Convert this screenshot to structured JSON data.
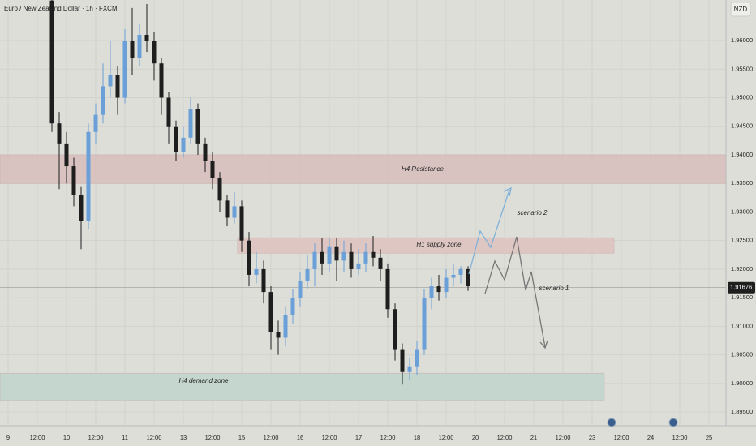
{
  "chart_data": {
    "type": "candlestick",
    "title": "Euro / New Zealand Dollar · 1h · FXCM",
    "currency": "NZD",
    "bull_color": "#6a9fd8",
    "bear_color": "#1e1e1e",
    "grid": true,
    "xlim": [
      -3.33,
      295
    ],
    "ylim": [
      1.8926,
      1.9671
    ],
    "xticks": [
      {
        "value": 0,
        "label": "9"
      },
      {
        "value": 12,
        "label": "12:00"
      },
      {
        "value": 24,
        "label": "10"
      },
      {
        "value": 36,
        "label": "12:00"
      },
      {
        "value": 48,
        "label": "11"
      },
      {
        "value": 60,
        "label": "12:00"
      },
      {
        "value": 72,
        "label": "13"
      },
      {
        "value": 84,
        "label": "12:00"
      },
      {
        "value": 96,
        "label": "15"
      },
      {
        "value": 108,
        "label": "12:00"
      },
      {
        "value": 120,
        "label": "16"
      },
      {
        "value": 132,
        "label": "12:00"
      },
      {
        "value": 144,
        "label": "17"
      },
      {
        "value": 156,
        "label": "12:00"
      },
      {
        "value": 168,
        "label": "18"
      },
      {
        "value": 180,
        "label": "12:00"
      },
      {
        "value": 192,
        "label": "20"
      },
      {
        "value": 204,
        "label": "12:00"
      },
      {
        "value": 216,
        "label": "21"
      },
      {
        "value": 228,
        "label": "12:00"
      },
      {
        "value": 240,
        "label": "23"
      },
      {
        "value": 252,
        "label": "12:00"
      },
      {
        "value": 264,
        "label": "24"
      },
      {
        "value": 276,
        "label": "12:00"
      },
      {
        "value": 288,
        "label": "25"
      }
    ],
    "yticks": [
      {
        "value": 1.96,
        "label": "1.96000"
      },
      {
        "value": 1.955,
        "label": "1.95500"
      },
      {
        "value": 1.95,
        "label": "1.95000"
      },
      {
        "value": 1.945,
        "label": "1.94500"
      },
      {
        "value": 1.94,
        "label": "1.94000"
      },
      {
        "value": 1.935,
        "label": "1.93500"
      },
      {
        "value": 1.93,
        "label": "1.93000"
      },
      {
        "value": 1.925,
        "label": "1.92500"
      },
      {
        "value": 1.92,
        "label": "1.92000"
      },
      {
        "value": 1.915,
        "label": "1.91500"
      },
      {
        "value": 1.91,
        "label": "1.91000"
      },
      {
        "value": 1.905,
        "label": "1.90500"
      },
      {
        "value": 1.9,
        "label": "1.90000"
      },
      {
        "value": 1.895,
        "label": "1.89500"
      }
    ],
    "last_price": {
      "value": 1.91676,
      "label": "1.91676"
    },
    "x": [
      18,
      21,
      24,
      27,
      30,
      33,
      36,
      39,
      42,
      45,
      48,
      51,
      54,
      57,
      60,
      63,
      66,
      69,
      72,
      75,
      78,
      81,
      84,
      87,
      90,
      93,
      96,
      99,
      102,
      105,
      108,
      111,
      114,
      117,
      120,
      123,
      126,
      129,
      132,
      135,
      138,
      141,
      144,
      147,
      150,
      153,
      156,
      159,
      162,
      165,
      168,
      171,
      174,
      177,
      180,
      183,
      186,
      189
    ],
    "open": [
      1.967,
      1.9455,
      1.942,
      1.938,
      1.933,
      1.9285,
      1.944,
      1.947,
      1.952,
      1.954,
      1.95,
      1.96,
      1.957,
      1.961,
      1.96,
      1.956,
      1.95,
      1.945,
      1.9405,
      1.943,
      1.948,
      1.942,
      1.939,
      1.936,
      1.932,
      1.929,
      1.931,
      1.925,
      1.919,
      1.92,
      1.916,
      1.909,
      1.908,
      1.912,
      1.915,
      1.918,
      1.92,
      1.923,
      1.921,
      1.924,
      1.9215,
      1.923,
      1.92,
      1.921,
      1.923,
      1.922,
      1.92,
      1.913,
      1.906,
      1.902,
      1.903,
      1.906,
      1.915,
      1.917,
      1.916,
      1.9185,
      1.919,
      1.92
    ],
    "high": [
      1.9671,
      1.9475,
      1.944,
      1.9395,
      1.9345,
      1.9455,
      1.949,
      1.956,
      1.96,
      1.9555,
      1.962,
      1.9657,
      1.963,
      1.9664,
      1.9615,
      1.957,
      1.951,
      1.946,
      1.945,
      1.95,
      1.949,
      1.943,
      1.9405,
      1.937,
      1.933,
      1.9335,
      1.932,
      1.9265,
      1.923,
      1.9215,
      1.917,
      1.911,
      1.9135,
      1.9165,
      1.9195,
      1.9225,
      1.9245,
      1.9255,
      1.9255,
      1.9255,
      1.925,
      1.9245,
      1.9235,
      1.9245,
      1.9258,
      1.9235,
      1.921,
      1.914,
      1.907,
      1.9045,
      1.9075,
      1.9165,
      1.9185,
      1.919,
      1.92,
      1.921,
      1.9205,
      1.9205
    ],
    "low": [
      1.944,
      1.934,
      1.935,
      1.931,
      1.9235,
      1.927,
      1.942,
      1.9455,
      1.95,
      1.947,
      1.949,
      1.954,
      1.9555,
      1.958,
      1.953,
      1.947,
      1.942,
      1.939,
      1.9395,
      1.942,
      1.94,
      1.937,
      1.934,
      1.93,
      1.9275,
      1.928,
      1.923,
      1.917,
      1.9175,
      1.914,
      1.906,
      1.905,
      1.9065,
      1.9105,
      1.9135,
      1.9165,
      1.917,
      1.919,
      1.9195,
      1.918,
      1.9195,
      1.9185,
      1.919,
      1.9195,
      1.9205,
      1.918,
      1.9115,
      1.904,
      1.8998,
      1.9005,
      1.9015,
      1.905,
      1.913,
      1.9145,
      1.915,
      1.917,
      1.9175,
      1.9162
    ],
    "close": [
      1.9455,
      1.942,
      1.938,
      1.933,
      1.9285,
      1.944,
      1.947,
      1.952,
      1.954,
      1.95,
      1.96,
      1.957,
      1.961,
      1.96,
      1.956,
      1.95,
      1.945,
      1.9405,
      1.943,
      1.948,
      1.942,
      1.939,
      1.936,
      1.932,
      1.929,
      1.931,
      1.925,
      1.919,
      1.92,
      1.916,
      1.909,
      1.908,
      1.912,
      1.915,
      1.918,
      1.92,
      1.923,
      1.921,
      1.924,
      1.9215,
      1.923,
      1.92,
      1.921,
      1.923,
      1.922,
      1.92,
      1.913,
      1.906,
      1.902,
      1.903,
      1.906,
      1.915,
      1.917,
      1.916,
      1.9185,
      1.919,
      1.92,
      1.917
    ],
    "zones": [
      {
        "label": "H4 Resistance",
        "x": [
          -3.33,
          295
        ],
        "y": [
          1.935,
          1.94
        ],
        "color": "#d7c0bc"
      },
      {
        "label": "H1 supply zone",
        "x": [
          94.3,
          249
        ],
        "y": [
          1.9228,
          1.9255
        ],
        "color": "#dec4c0"
      },
      {
        "label": "H4 demand zone",
        "x": [
          -3.33,
          245
        ],
        "y": [
          1.897,
          1.9018
        ],
        "color": "#c2d5cd"
      }
    ],
    "annotations": [
      "scenario 2",
      "scenario 1"
    ]
  }
}
